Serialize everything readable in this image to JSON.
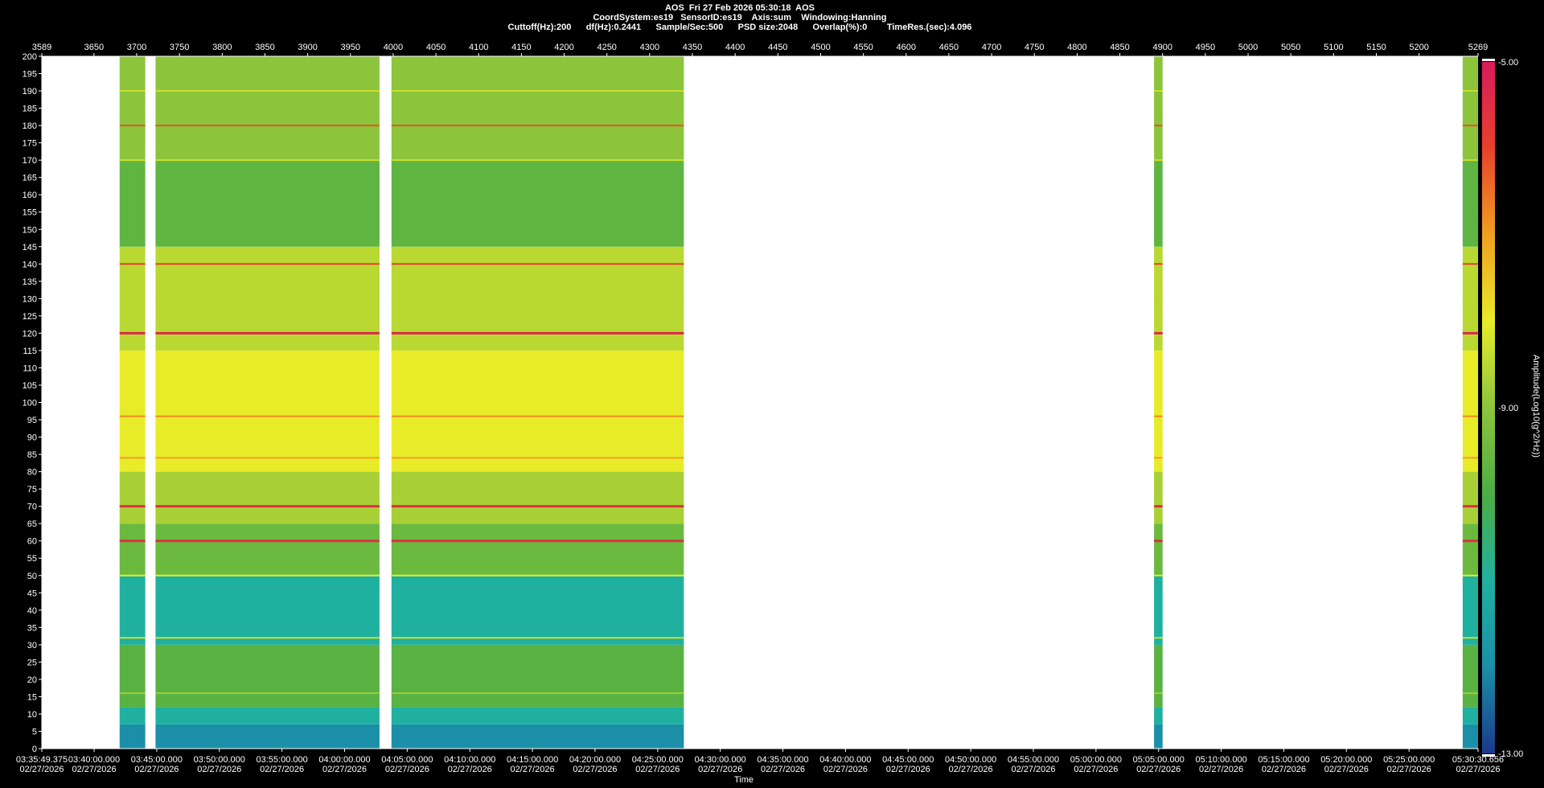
{
  "header": {
    "line1": "AOS  Fri 27 Feb 2026 05:30:18  AOS",
    "line2": "CoordSystem:es19   SensorID:es19    Axis:sum    Windowing:Hanning",
    "line3": "Cuttoff(Hz):200      df(Hz):0.2441      Sample/Sec:500      PSD size:2048      Overlap(%):0        TimeRes.(sec):4.096"
  },
  "chart_data": {
    "type": "heatmap",
    "title": "AOS  Fri 27 Feb 2026 05:30:18  AOS",
    "xlabel": "Time",
    "ylabel": "",
    "colorbar_label": "Amplitude(Log10(g^2/Hz))",
    "colorbar_ticks": [
      "-5.00",
      "-9.00",
      "-13.00"
    ],
    "colorbar_range": [
      -13,
      -5
    ],
    "colorscale": [
      "#1a3a8a",
      "#1c8fa8",
      "#20b0a0",
      "#4cae44",
      "#8cc43c",
      "#e8ec28",
      "#f0a020",
      "#e8402c",
      "#d81c5c"
    ],
    "ylim": [
      0,
      200
    ],
    "y_ticks": [
      200,
      195,
      190,
      185,
      180,
      175,
      170,
      165,
      160,
      155,
      150,
      145,
      140,
      135,
      130,
      125,
      120,
      115,
      110,
      105,
      100,
      95,
      90,
      85,
      80,
      75,
      70,
      65,
      60,
      55,
      50,
      45,
      40,
      35,
      30,
      25,
      20,
      15,
      10,
      5,
      0
    ],
    "top_axis_range": [
      3589,
      5269
    ],
    "top_ticks": [
      "3589",
      "3650",
      "3700",
      "3750",
      "3800",
      "3850",
      "3900",
      "3950",
      "4000",
      "4050",
      "4100",
      "4150",
      "4200",
      "4250",
      "4300",
      "4350",
      "4400",
      "4450",
      "4500",
      "4550",
      "4600",
      "4650",
      "4700",
      "4750",
      "4800",
      "4850",
      "4900",
      "4950",
      "5000",
      "5050",
      "5100",
      "5150",
      "5200",
      "5269"
    ],
    "time_range": [
      "03:35:49.375",
      "05:30:30.656"
    ],
    "time_ticks": [
      {
        "time": "03:35:49.375",
        "date": "02/27/2026"
      },
      {
        "time": "03:40:00.000",
        "date": "02/27/2026"
      },
      {
        "time": "03:45:00.000",
        "date": "02/27/2026"
      },
      {
        "time": "03:50:00.000",
        "date": "02/27/2026"
      },
      {
        "time": "03:55:00.000",
        "date": "02/27/2026"
      },
      {
        "time": "04:00:00.000",
        "date": "02/27/2026"
      },
      {
        "time": "04:05:00.000",
        "date": "02/27/2026"
      },
      {
        "time": "04:10:00.000",
        "date": "02/27/2026"
      },
      {
        "time": "04:15:00.000",
        "date": "02/27/2026"
      },
      {
        "time": "04:20:00.000",
        "date": "02/27/2026"
      },
      {
        "time": "04:25:00.000",
        "date": "02/27/2026"
      },
      {
        "time": "04:30:00.000",
        "date": "02/27/2026"
      },
      {
        "time": "04:35:00.000",
        "date": "02/27/2026"
      },
      {
        "time": "04:40:00.000",
        "date": "02/27/2026"
      },
      {
        "time": "04:45:00.000",
        "date": "02/27/2026"
      },
      {
        "time": "04:50:00.000",
        "date": "02/27/2026"
      },
      {
        "time": "04:55:00.000",
        "date": "02/27/2026"
      },
      {
        "time": "05:00:00.000",
        "date": "02/27/2026"
      },
      {
        "time": "05:05:00.000",
        "date": "02/27/2026"
      },
      {
        "time": "05:10:00.000",
        "date": "02/27/2026"
      },
      {
        "time": "05:15:00.000",
        "date": "02/27/2026"
      },
      {
        "time": "05:20:00.000",
        "date": "02/27/2026"
      },
      {
        "time": "05:25:00.000",
        "date": "02/27/2026"
      },
      {
        "time": "05:30:30.656",
        "date": "02/27/2026"
      }
    ],
    "data_segments_top_axis": [
      [
        3680,
        3710
      ],
      [
        3722,
        3984
      ],
      [
        3998,
        4340
      ],
      [
        4890,
        4900
      ],
      [
        5251,
        5269
      ]
    ],
    "spectral_lines_hz": [
      {
        "hz": 120,
        "level": -5.3
      },
      {
        "hz": 70,
        "level": -5.5
      },
      {
        "hz": 60,
        "level": -5.5
      },
      {
        "hz": 140,
        "level": -6.0
      },
      {
        "hz": 180,
        "level": -6.2
      },
      {
        "hz": 96,
        "level": -6.8
      },
      {
        "hz": 84,
        "level": -7.0
      },
      {
        "hz": 32,
        "level": -8.3
      },
      {
        "hz": 50,
        "level": -8.0
      },
      {
        "hz": 190,
        "level": -8.3
      },
      {
        "hz": 170,
        "level": -8.3
      },
      {
        "hz": 130,
        "level": -8.5
      },
      {
        "hz": 16,
        "level": -8.8
      }
    ],
    "bands_hz": [
      {
        "from": 0,
        "to": 7,
        "level": -12.0
      },
      {
        "from": 7,
        "to": 12,
        "level": -11.0
      },
      {
        "from": 12,
        "to": 30,
        "level": -9.8
      },
      {
        "from": 30,
        "to": 50,
        "level": -11.0
      },
      {
        "from": 50,
        "to": 65,
        "level": -9.5
      },
      {
        "from": 65,
        "to": 80,
        "level": -8.7
      },
      {
        "from": 80,
        "to": 115,
        "level": -8.0
      },
      {
        "from": 115,
        "to": 145,
        "level": -8.5
      },
      {
        "from": 145,
        "to": 170,
        "level": -9.7
      },
      {
        "from": 170,
        "to": 200,
        "level": -9.0
      }
    ]
  }
}
